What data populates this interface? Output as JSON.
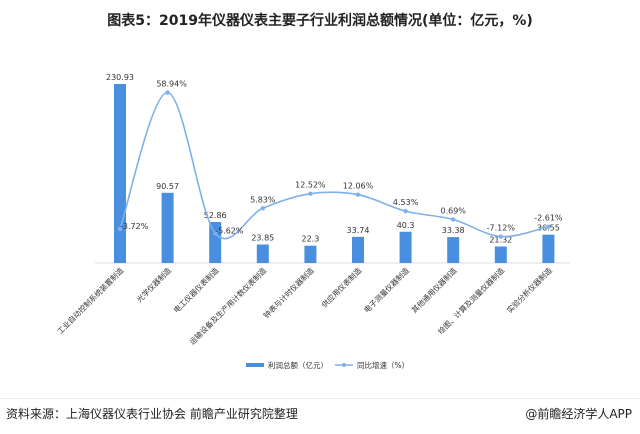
{
  "title": "图表5：2019年仪器仪表主要子行业利润总额情况(单位：亿元，%)",
  "chart_data": {
    "type": "bar+line",
    "title": "图表5：2019年仪器仪表主要子行业利润总额情况(单位：亿元，%)",
    "categories": [
      "工业自动控制系统装置制造",
      "光学仪器制造",
      "电工仪器仪表制造",
      "运输设备及生产用计数仪表制造",
      "钟表与计时仪器制造",
      "供应用仪表制造",
      "电子测量仪器制造",
      "其他通用仪器制造",
      "绘图、计算及测量仪器制造",
      "实验分析仪器制造"
    ],
    "series": [
      {
        "name": "利润总额（亿元）",
        "type": "bar",
        "values": [
          230.93,
          90.57,
          52.86,
          23.85,
          22.3,
          33.74,
          40.3,
          33.38,
          21.32,
          36.55
        ],
        "labels": [
          "230.93",
          "90.57",
          "52.86",
          "23.85",
          "22.3",
          "33.74",
          "40.3",
          "33.38",
          "21.32",
          "36.55"
        ],
        "color": "#4a8ee0"
      },
      {
        "name": "同比增速（%）",
        "type": "line",
        "values": [
          -3.72,
          58.94,
          -5.62,
          5.83,
          12.52,
          12.06,
          4.53,
          0.69,
          -7.12,
          -2.61
        ],
        "labels": [
          "-3.72%",
          "58.94%",
          "-5.62%",
          "5.83%",
          "12.52%",
          "12.06%",
          "4.53%",
          "0.69%",
          "-7.12%",
          "-2.61%"
        ],
        "color": "#7fb0ea",
        "smooth": true
      }
    ],
    "legend": "bottom",
    "grid": false
  },
  "footer": {
    "source": "资料来源：上海仪器仪表行业协会 前瞻产业研究院整理",
    "brand": "@前瞻经济学人APP"
  }
}
